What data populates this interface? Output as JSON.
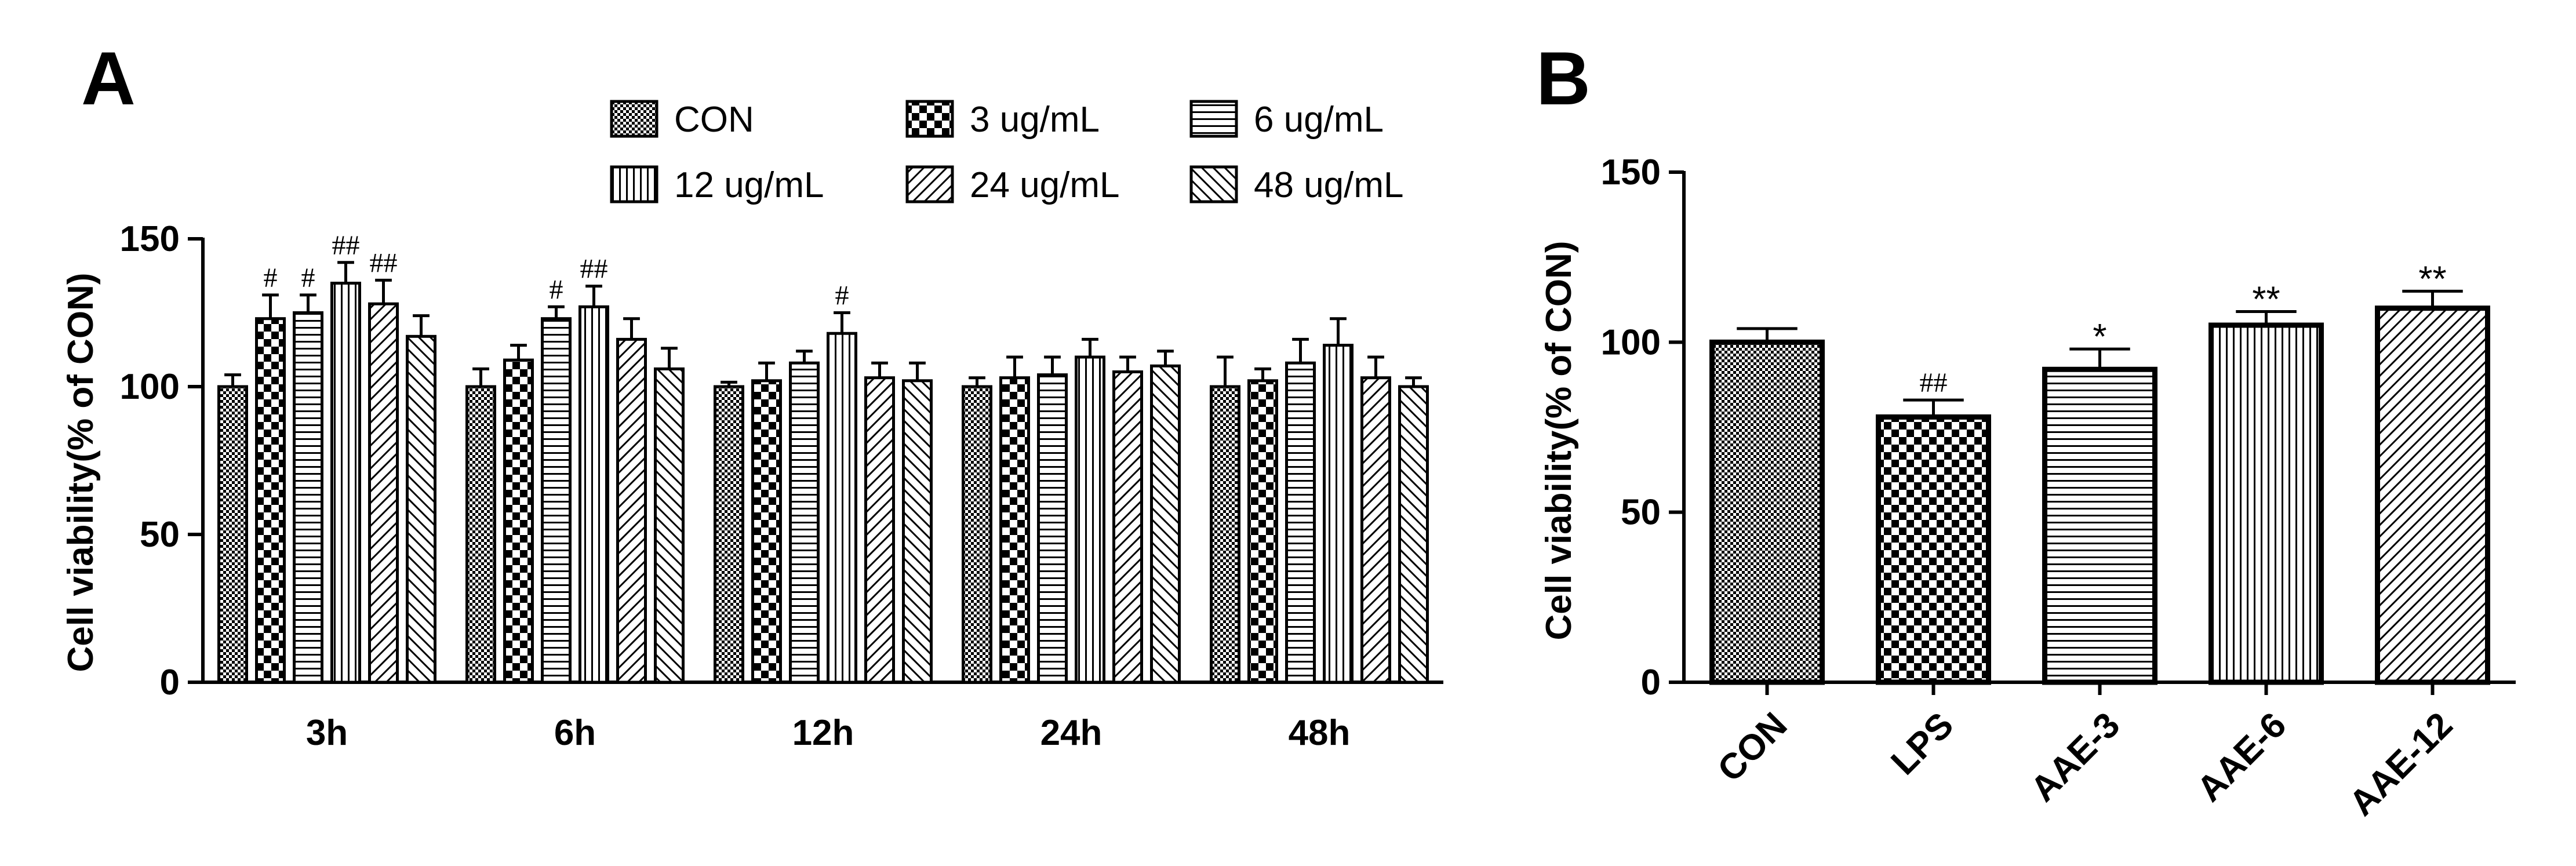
{
  "chart_data": [
    {
      "panel": "A",
      "type": "bar",
      "ylabel": "Cell viability(% of CON)",
      "ylim": [
        0,
        150
      ],
      "yticks": [
        "0",
        "50",
        "100",
        "150"
      ],
      "categories": [
        "3h",
        "6h",
        "12h",
        "24h",
        "48h"
      ],
      "legend": [
        "CON",
        "3 ug/mL",
        "6 ug/mL",
        "12 ug/mL",
        "24 ug/mL",
        "48 ug/mL"
      ],
      "series": [
        {
          "name": "CON",
          "pattern": "dots",
          "values": [
            100,
            100,
            100,
            100,
            100
          ],
          "errors": [
            4,
            6,
            1.5,
            3,
            10
          ],
          "sig": [
            "",
            "",
            "",
            "",
            ""
          ]
        },
        {
          "name": "3 ug/mL",
          "pattern": "check",
          "values": [
            123,
            109,
            102,
            103,
            102
          ],
          "errors": [
            8,
            5,
            6,
            7,
            4
          ],
          "sig": [
            "#",
            "",
            "",
            "",
            ""
          ]
        },
        {
          "name": "6 ug/mL",
          "pattern": "hlines",
          "values": [
            125,
            123,
            108,
            104,
            108
          ],
          "errors": [
            6,
            4,
            4,
            6,
            8
          ],
          "sig": [
            "#",
            "#",
            "",
            "",
            ""
          ]
        },
        {
          "name": "12 ug/mL",
          "pattern": "vlines",
          "values": [
            135,
            127,
            118,
            110,
            114
          ],
          "errors": [
            7,
            7,
            7,
            6,
            9
          ],
          "sig": [
            "##",
            "##",
            "#",
            "",
            ""
          ]
        },
        {
          "name": "24 ug/mL",
          "pattern": "fdiag",
          "values": [
            128,
            116,
            103,
            105,
            103
          ],
          "errors": [
            8,
            7,
            5,
            5,
            7
          ],
          "sig": [
            "##",
            "",
            "",
            "",
            ""
          ]
        },
        {
          "name": "48 ug/mL",
          "pattern": "bdiag",
          "values": [
            117,
            106,
            102,
            107,
            100
          ],
          "errors": [
            7,
            7,
            6,
            5,
            3
          ],
          "sig": [
            "",
            "",
            "",
            "",
            ""
          ]
        }
      ]
    },
    {
      "panel": "B",
      "type": "bar",
      "ylabel": "Cell viability(% of CON)",
      "ylim": [
        0,
        150
      ],
      "yticks": [
        "0",
        "50",
        "100",
        "150"
      ],
      "categories": [
        "CON",
        "LPS",
        "AAE-3",
        "AAE-6",
        "AAE-12"
      ],
      "values": [
        100,
        78,
        92,
        105,
        110
      ],
      "errors": [
        4,
        5,
        6,
        4,
        5
      ],
      "patterns": [
        "dots",
        "check",
        "hlines",
        "vlines",
        "fdiag"
      ],
      "sig": [
        "",
        "##",
        "*",
        "**",
        "**"
      ]
    }
  ]
}
